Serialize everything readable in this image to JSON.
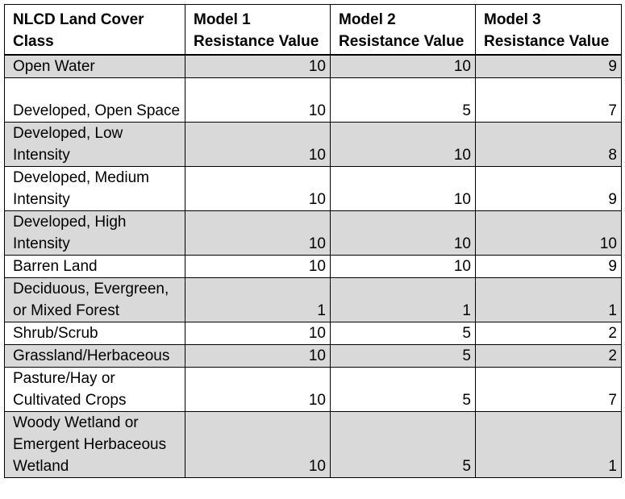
{
  "table": {
    "headers": [
      {
        "line1": "NLCD Land Cover",
        "line2": "Class"
      },
      {
        "line1": "Model 1",
        "line2": "Resistance Value"
      },
      {
        "line1": "Model 2",
        "line2": "Resistance Value"
      },
      {
        "line1": "Model 3",
        "line2": "Resistance Value"
      }
    ],
    "rows": [
      {
        "class": "Open Water",
        "m1": "10",
        "m2": "10",
        "m3": "9",
        "shaded": true
      },
      {
        "class": "Developed, Open Space",
        "m1": "10",
        "m2": "5",
        "m3": "7",
        "shaded": false
      },
      {
        "class": "Developed, Low Intensity",
        "m1": "10",
        "m2": "10",
        "m3": "8",
        "shaded": true
      },
      {
        "class": "Developed, Medium Intensity",
        "m1": "10",
        "m2": "10",
        "m3": "9",
        "shaded": false
      },
      {
        "class": "Developed, High Intensity",
        "m1": "10",
        "m2": "10",
        "m3": "10",
        "shaded": true
      },
      {
        "class": "Barren Land",
        "m1": "10",
        "m2": "10",
        "m3": "9",
        "shaded": false
      },
      {
        "class": "Deciduous, Evergreen, or Mixed Forest",
        "m1": "1",
        "m2": "1",
        "m3": "1",
        "shaded": true
      },
      {
        "class": "Shrub/Scrub",
        "m1": "10",
        "m2": "5",
        "m3": "2",
        "shaded": false
      },
      {
        "class": "Grassland/Herbaceous",
        "m1": "10",
        "m2": "5",
        "m3": "2",
        "shaded": true
      },
      {
        "class": "Pasture/Hay or Cultivated Crops",
        "m1": "10",
        "m2": "5",
        "m3": "7",
        "shaded": false
      },
      {
        "class": "Woody Wetland or Emergent Herbaceous Wetland",
        "m1": "10",
        "m2": "5",
        "m3": "1",
        "shaded": true
      }
    ]
  }
}
